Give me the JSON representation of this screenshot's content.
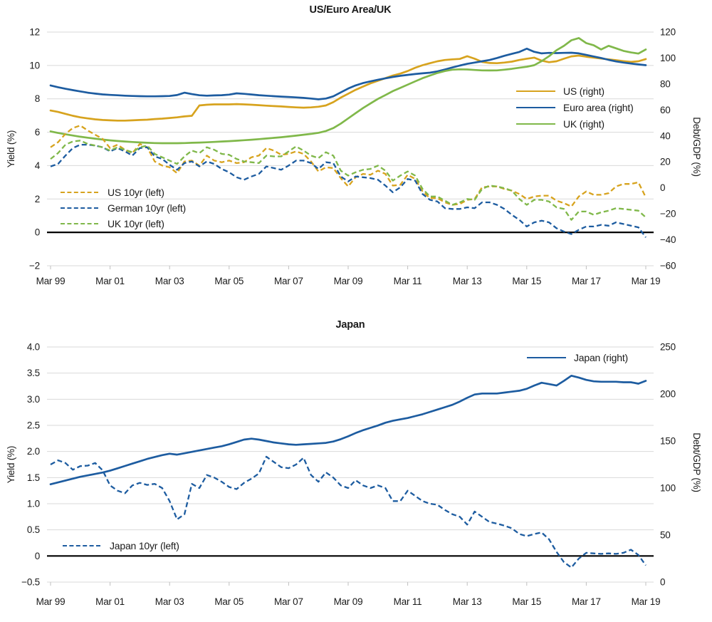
{
  "colors": {
    "us_gold": "#D7A31E",
    "euro_blue": "#1D5CA0",
    "uk_green": "#80B84A",
    "japan_blue": "#1D5CA0",
    "gridline": "#D9D9D9",
    "zero_line": "#000000",
    "axis_tick": "#BFBFBF",
    "text": "#1A1A1A"
  },
  "chart_data": [
    {
      "type": "line",
      "title": "US/Euro Area/UK",
      "ylabel_left": "Yield (%)",
      "ylabel_right": "Debt/GDP (%)",
      "x_domain": [
        1999.25,
        2019.25
      ],
      "x_step": 0.25,
      "x_unit": "quarterly",
      "x_tick_labels": [
        "Mar 99",
        "Mar 01",
        "Mar 03",
        "Mar 05",
        "Mar 07",
        "Mar 09",
        "Mar 11",
        "Mar 13",
        "Mar 15",
        "Mar 17",
        "Mar 19"
      ],
      "x_tick_years": [
        1999.25,
        2001.25,
        2003.25,
        2005.25,
        2007.25,
        2009.25,
        2011.25,
        2013.25,
        2015.25,
        2017.25,
        2019.25
      ],
      "left_axis": {
        "domain": [
          12,
          -2
        ],
        "ticks": [
          12,
          10,
          8,
          6,
          4,
          2,
          0,
          -2
        ],
        "labels": [
          "12",
          "10",
          "8",
          "6",
          "4",
          "2",
          "0",
          "−2"
        ]
      },
      "right_axis": {
        "domain": [
          120,
          -60
        ],
        "ticks": [
          120,
          100,
          80,
          60,
          40,
          20,
          0,
          -20,
          -40,
          -60
        ],
        "labels": [
          "120",
          "100",
          "80",
          "60",
          "40",
          "20",
          "0",
          "−20",
          "−40",
          "−60"
        ]
      },
      "zero_at": 0,
      "grid": true,
      "legend_positions": [
        "right-middle (solid series)",
        "left-lower (dashed series)"
      ],
      "series": [
        {
          "name": "US (right)",
          "axis": "right",
          "style": "solid",
          "color": "#D7A31E",
          "values": [
            59.6,
            58.5,
            57.0,
            55.5,
            54.3,
            53.5,
            52.8,
            52.3,
            52.0,
            51.8,
            51.8,
            52.0,
            52.3,
            52.5,
            53.0,
            53.3,
            53.8,
            54.3,
            55.0,
            55.5,
            63.5,
            64.0,
            64.3,
            64.3,
            64.3,
            64.5,
            64.3,
            64.0,
            63.7,
            63.3,
            63.0,
            62.7,
            62.3,
            62.0,
            61.8,
            62.0,
            62.5,
            63.5,
            66.0,
            69.5,
            72.5,
            75.5,
            78.0,
            80.5,
            82.5,
            84.5,
            86.5,
            88.0,
            90.0,
            92.5,
            94.5,
            96.0,
            97.5,
            98.5,
            99.0,
            99.3,
            101.4,
            99.5,
            97.0,
            96.2,
            96.0,
            96.5,
            97.2,
            98.5,
            99.5,
            100.3,
            98.0,
            96.8,
            97.5,
            99.5,
            101.3,
            101.9,
            101.0,
            100.3,
            99.6,
            99.0,
            98.3,
            97.6,
            97.0,
            97.5,
            99.2
          ]
        },
        {
          "name": "Euro area (right)",
          "axis": "right",
          "style": "solid",
          "color": "#1D5CA0",
          "values": [
            78.9,
            77.5,
            76.3,
            75.3,
            74.3,
            73.3,
            72.6,
            72.0,
            71.6,
            71.3,
            71.0,
            70.8,
            70.6,
            70.5,
            70.5,
            70.6,
            70.8,
            71.5,
            73.3,
            72.2,
            71.3,
            71.0,
            71.2,
            71.4,
            71.8,
            72.8,
            72.4,
            71.9,
            71.4,
            71.0,
            70.6,
            70.3,
            70.0,
            69.7,
            69.3,
            68.8,
            68.2,
            68.8,
            70.5,
            73.5,
            76.5,
            78.9,
            80.7,
            82.0,
            83.3,
            84.4,
            85.4,
            86.3,
            87.0,
            87.7,
            88.2,
            88.7,
            89.7,
            91.2,
            92.7,
            94.2,
            95.5,
            96.5,
            97.5,
            98.5,
            100.0,
            101.7,
            103.2,
            104.7,
            107.2,
            104.8,
            103.6,
            104.0,
            103.8,
            104.0,
            104.1,
            103.6,
            102.4,
            101.2,
            100.0,
            98.6,
            97.4,
            96.5,
            95.8,
            95.1,
            94.5
          ]
        },
        {
          "name": "UK (right)",
          "axis": "right",
          "style": "solid",
          "color": "#80B84A",
          "values": [
            43.5,
            42.3,
            41.3,
            40.3,
            39.4,
            38.6,
            37.9,
            37.2,
            36.6,
            36.1,
            35.7,
            35.3,
            35.0,
            34.7,
            34.5,
            34.4,
            34.4,
            34.4,
            34.5,
            34.7,
            34.9,
            35.1,
            35.4,
            35.7,
            36.0,
            36.3,
            36.7,
            37.1,
            37.5,
            38.0,
            38.5,
            39.0,
            39.6,
            40.2,
            40.9,
            41.6,
            42.4,
            43.8,
            46.0,
            49.5,
            53.5,
            57.5,
            61.5,
            65.0,
            68.5,
            71.5,
            74.5,
            77.0,
            79.5,
            82.0,
            84.5,
            86.5,
            88.5,
            90.0,
            91.0,
            91.3,
            91.2,
            90.8,
            90.5,
            90.4,
            90.5,
            91.0,
            91.7,
            92.5,
            93.3,
            94.5,
            97.6,
            101.4,
            106.0,
            109.4,
            113.7,
            115.4,
            111.5,
            109.8,
            106.6,
            109.4,
            107.5,
            105.5,
            104.3,
            103.4,
            106.6
          ]
        },
        {
          "name": "US 10yr (left)",
          "axis": "left",
          "style": "dashed",
          "color": "#D7A31E",
          "values": [
            5.1,
            5.4,
            5.9,
            6.25,
            6.4,
            6.1,
            5.85,
            5.6,
            5.05,
            5.25,
            4.95,
            4.75,
            5.3,
            5.1,
            4.25,
            4.0,
            3.9,
            3.55,
            4.25,
            4.3,
            4.0,
            4.6,
            4.3,
            4.2,
            4.3,
            4.15,
            4.2,
            4.5,
            4.6,
            5.05,
            4.9,
            4.65,
            4.7,
            4.85,
            4.7,
            4.25,
            3.65,
            3.9,
            3.85,
            3.25,
            2.75,
            3.3,
            3.5,
            3.45,
            3.7,
            3.5,
            2.8,
            2.85,
            3.45,
            3.2,
            2.45,
            2.05,
            2.05,
            1.8,
            1.65,
            1.7,
            1.95,
            2.0,
            2.7,
            2.75,
            2.75,
            2.6,
            2.5,
            2.3,
            2.0,
            2.15,
            2.2,
            2.2,
            1.9,
            1.75,
            1.55,
            2.15,
            2.45,
            2.25,
            2.25,
            2.35,
            2.75,
            2.9,
            2.9,
            3.0,
            2.1
          ]
        },
        {
          "name": "German 10yr (left)",
          "axis": "left",
          "style": "dashed",
          "color": "#1D5CA0",
          "values": [
            3.95,
            4.1,
            4.6,
            5.05,
            5.25,
            5.25,
            5.2,
            5.1,
            4.85,
            5.05,
            4.85,
            4.6,
            5.05,
            5.1,
            4.55,
            4.4,
            4.05,
            3.75,
            4.15,
            4.25,
            3.95,
            4.25,
            4.1,
            3.8,
            3.6,
            3.3,
            3.15,
            3.35,
            3.5,
            3.95,
            3.85,
            3.75,
            4.0,
            4.3,
            4.3,
            4.15,
            3.8,
            4.2,
            4.15,
            3.35,
            3.05,
            3.35,
            3.3,
            3.25,
            3.15,
            2.8,
            2.4,
            2.7,
            3.2,
            3.1,
            2.3,
            1.95,
            1.85,
            1.45,
            1.4,
            1.4,
            1.5,
            1.45,
            1.8,
            1.8,
            1.65,
            1.4,
            1.05,
            0.75,
            0.35,
            0.6,
            0.7,
            0.6,
            0.25,
            0.05,
            -0.1,
            0.15,
            0.35,
            0.35,
            0.45,
            0.4,
            0.6,
            0.5,
            0.4,
            0.3,
            -0.3
          ]
        },
        {
          "name": "UK 10yr (left)",
          "axis": "left",
          "style": "dashed",
          "color": "#80B84A",
          "values": [
            4.4,
            4.75,
            5.25,
            5.45,
            5.5,
            5.3,
            5.2,
            5.1,
            4.9,
            5.1,
            4.95,
            4.8,
            5.1,
            5.2,
            4.7,
            4.5,
            4.3,
            4.1,
            4.55,
            4.9,
            4.75,
            5.1,
            4.95,
            4.7,
            4.65,
            4.4,
            4.25,
            4.2,
            4.15,
            4.6,
            4.55,
            4.55,
            4.85,
            5.15,
            4.9,
            4.6,
            4.45,
            4.8,
            4.6,
            3.7,
            3.4,
            3.6,
            3.75,
            3.8,
            4.0,
            3.7,
            3.1,
            3.4,
            3.65,
            3.4,
            2.6,
            2.15,
            2.15,
            1.9,
            1.65,
            1.8,
            2.0,
            1.95,
            2.6,
            2.8,
            2.75,
            2.65,
            2.5,
            2.0,
            1.65,
            1.95,
            1.95,
            1.85,
            1.5,
            1.4,
            0.75,
            1.25,
            1.25,
            1.05,
            1.2,
            1.3,
            1.45,
            1.4,
            1.35,
            1.3,
            0.9
          ]
        }
      ]
    },
    {
      "type": "line",
      "title": "Japan",
      "ylabel_left": "Yield (%)",
      "ylabel_right": "Debt/GDP (%)",
      "x_domain": [
        1999.25,
        2019.25
      ],
      "x_step": 0.25,
      "x_unit": "quarterly",
      "x_tick_labels": [
        "Mar 99",
        "Mar 01",
        "Mar 03",
        "Mar 05",
        "Mar 07",
        "Mar 09",
        "Mar 11",
        "Mar 13",
        "Mar 15",
        "Mar 17",
        "Mar 19"
      ],
      "x_tick_years": [
        1999.25,
        2001.25,
        2003.25,
        2005.25,
        2007.25,
        2009.25,
        2011.25,
        2013.25,
        2015.25,
        2017.25,
        2019.25
      ],
      "left_axis": {
        "domain": [
          4.0,
          -0.5
        ],
        "ticks": [
          4.0,
          3.5,
          3.0,
          2.5,
          2.0,
          1.5,
          1.0,
          0.5,
          0,
          -0.5
        ],
        "labels": [
          "4.0",
          "3.5",
          "3.0",
          "2.5",
          "2.0",
          "1.5",
          "1.0",
          "0.5",
          "0",
          "−0.5"
        ]
      },
      "right_axis": {
        "domain": [
          250,
          0
        ],
        "ticks": [
          250,
          200,
          150,
          100,
          50,
          0
        ],
        "labels": [
          "250",
          "200",
          "150",
          "100",
          "50",
          "0"
        ]
      },
      "zero_at": 0,
      "grid": true,
      "legend_positions": [
        "right-upper (solid series)",
        "left-lower (dashed series)"
      ],
      "series": [
        {
          "name": "Japan (right)",
          "axis": "right",
          "style": "solid",
          "color": "#1D5CA0",
          "values": [
            104,
            106,
            108,
            110,
            112,
            113.5,
            115,
            116.5,
            118.5,
            121,
            123.5,
            126,
            128.5,
            131,
            133,
            135,
            136.5,
            135.5,
            137,
            138.5,
            140,
            141.5,
            143,
            144.5,
            146.5,
            149,
            151.5,
            152.5,
            151.5,
            150,
            148.5,
            147.5,
            146.5,
            146,
            146.5,
            147,
            147.5,
            148,
            149.5,
            152,
            155,
            158.5,
            161.5,
            164,
            166.5,
            169.5,
            171.5,
            173,
            174.5,
            176.5,
            178.5,
            181,
            183.5,
            186,
            188.5,
            192,
            196,
            199.5,
            200.5,
            200.5,
            200.5,
            201.5,
            202.5,
            203.5,
            205.5,
            209,
            212,
            210.5,
            209,
            214,
            219.5,
            217.5,
            215,
            213.5,
            213,
            213,
            213,
            212.5,
            212.5,
            211,
            214
          ]
        },
        {
          "name": "Japan 10yr (left)",
          "axis": "left",
          "style": "dashed",
          "color": "#1D5CA0",
          "values": [
            1.75,
            1.83,
            1.78,
            1.65,
            1.72,
            1.73,
            1.78,
            1.64,
            1.35,
            1.25,
            1.2,
            1.35,
            1.4,
            1.36,
            1.38,
            1.3,
            1.05,
            0.7,
            0.8,
            1.38,
            1.3,
            1.55,
            1.5,
            1.42,
            1.32,
            1.28,
            1.4,
            1.48,
            1.58,
            1.9,
            1.8,
            1.7,
            1.68,
            1.75,
            1.88,
            1.55,
            1.42,
            1.6,
            1.5,
            1.35,
            1.3,
            1.45,
            1.35,
            1.3,
            1.35,
            1.3,
            1.05,
            1.05,
            1.25,
            1.15,
            1.05,
            1.0,
            0.98,
            0.88,
            0.8,
            0.75,
            0.6,
            0.85,
            0.75,
            0.65,
            0.62,
            0.58,
            0.53,
            0.42,
            0.38,
            0.42,
            0.45,
            0.32,
            0.08,
            -0.12,
            -0.22,
            -0.05,
            0.06,
            0.05,
            0.04,
            0.05,
            0.04,
            0.06,
            0.12,
            0.02,
            -0.18
          ]
        }
      ]
    }
  ]
}
